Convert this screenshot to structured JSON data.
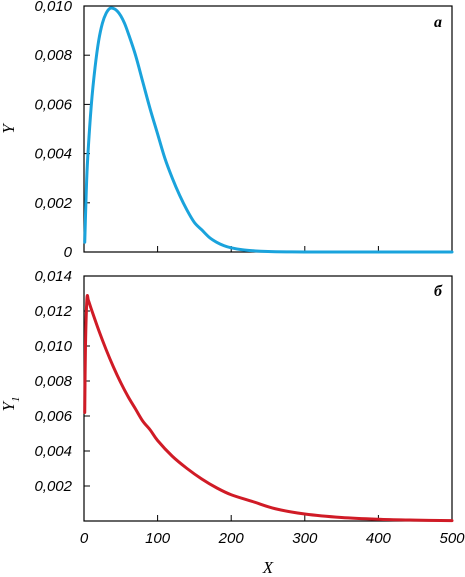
{
  "chart_data": [
    {
      "type": "line",
      "panel_label": "a",
      "ylabel": "Y",
      "xlabel": "",
      "xlim": [
        0,
        500
      ],
      "ylim": [
        0,
        0.01
      ],
      "xticks": [
        0,
        100,
        200,
        300,
        400,
        500
      ],
      "xtick_labels": [],
      "yticks": [
        0,
        0.002,
        0.004,
        0.006,
        0.008,
        0.01
      ],
      "ytick_labels": [
        "0",
        "0,002",
        "0,004",
        "0,006",
        "0,008",
        "0,010"
      ],
      "color": "#1aa3dc",
      "series": [
        {
          "x": [
            1,
            3,
            5,
            10,
            15,
            20,
            25,
            30,
            35,
            40,
            45,
            50,
            55,
            60,
            70,
            80,
            90,
            100,
            110,
            120,
            130,
            140,
            150,
            160,
            170,
            180,
            190,
            200,
            215,
            230,
            250,
            275,
            300,
            350,
            400,
            450,
            500
          ],
          "y": [
            0.0004,
            0.0024,
            0.0038,
            0.006,
            0.0075,
            0.0086,
            0.0093,
            0.0097,
            0.0099,
            0.0099,
            0.0098,
            0.0096,
            0.0093,
            0.0089,
            0.008,
            0.0069,
            0.0058,
            0.0048,
            0.0038,
            0.003,
            0.0023,
            0.0017,
            0.0012,
            0.0009,
            0.0006,
            0.0004,
            0.00026,
            0.00017,
            9e-05,
            5e-05,
            2e-05,
            5e-06,
            1e-06,
            0,
            0,
            0,
            0
          ]
        }
      ]
    },
    {
      "type": "line",
      "panel_label": "б",
      "ylabel": "Y",
      "ylabel_subscript": "1",
      "xlabel": "X",
      "xlim": [
        0,
        500
      ],
      "ylim": [
        0,
        0.014
      ],
      "xticks": [
        0,
        100,
        200,
        300,
        400,
        500
      ],
      "xtick_labels": [
        "0",
        "100",
        "200",
        "300",
        "400",
        "500"
      ],
      "yticks": [
        0.002,
        0.004,
        0.006,
        0.008,
        0.01,
        0.012,
        0.014
      ],
      "ytick_labels": [
        "0,002",
        "0,004",
        "0,006",
        "0,008",
        "0,010",
        "0,012",
        "0,014"
      ],
      "color": "#d01b26",
      "series": [
        {
          "x": [
            1,
            2,
            4,
            6,
            10,
            20,
            30,
            40,
            50,
            60,
            70,
            80,
            90,
            100,
            120,
            140,
            160,
            180,
            200,
            230,
            260,
            300,
            350,
            400,
            450,
            500
          ],
          "y": [
            0.0062,
            0.01,
            0.0127,
            0.0126,
            0.0121,
            0.0109,
            0.0098,
            0.0088,
            0.0079,
            0.0071,
            0.0064,
            0.0057,
            0.0052,
            0.0046,
            0.0037,
            0.003,
            0.0024,
            0.0019,
            0.0015,
            0.0011,
            0.0007,
            0.0004,
            0.0002,
            0.0001,
            5e-05,
            2e-05
          ]
        }
      ]
    }
  ]
}
